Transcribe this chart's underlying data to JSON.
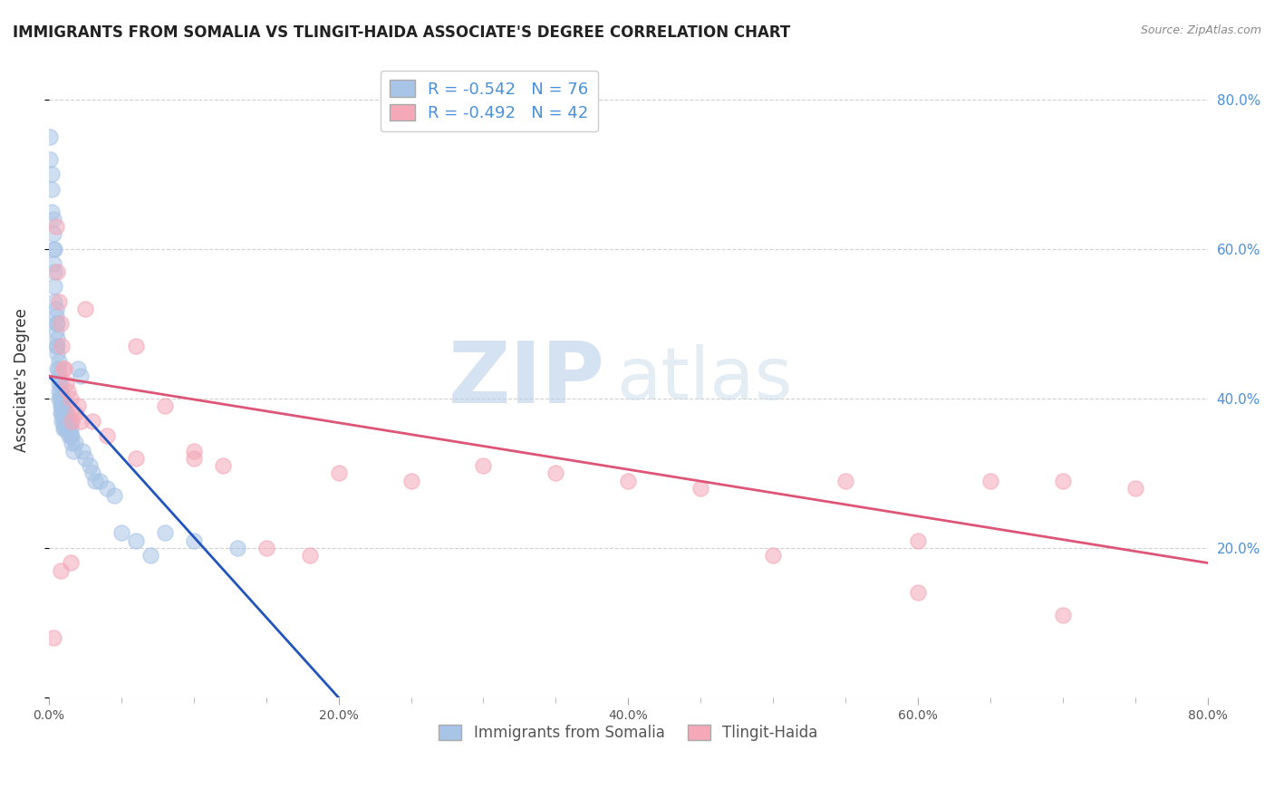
{
  "title": "IMMIGRANTS FROM SOMALIA VS TLINGIT-HAIDA ASSOCIATE'S DEGREE CORRELATION CHART",
  "source": "Source: ZipAtlas.com",
  "ylabel": "Associate's Degree",
  "series1_label": "Immigrants from Somalia",
  "series2_label": "Tlingit-Haida",
  "series1_color": "#a8c4e6",
  "series2_color": "#f4a8b8",
  "series1_line_color": "#2255bb",
  "series2_line_color": "#dd5577",
  "series1_R": -0.542,
  "series1_N": 76,
  "series2_R": -0.492,
  "series2_N": 42,
  "xlim": [
    0.0,
    0.8
  ],
  "ylim": [
    0.0,
    0.85
  ],
  "xtick_major": [
    0.0,
    0.2,
    0.4,
    0.6,
    0.8
  ],
  "xtick_minor": [
    0.05,
    0.1,
    0.15,
    0.25,
    0.3,
    0.35,
    0.45,
    0.5,
    0.55,
    0.65,
    0.7,
    0.75
  ],
  "ytick_vals": [
    0.0,
    0.2,
    0.4,
    0.6,
    0.8
  ],
  "right_ytick_vals": [
    0.2,
    0.4,
    0.6,
    0.8
  ],
  "right_ytick_labels": [
    "20.0%",
    "40.0%",
    "60.0%",
    "80.0%"
  ],
  "background_color": "#ffffff",
  "grid_color": "#cccccc",
  "watermark_zip": "ZIP",
  "watermark_atlas": "atlas",
  "blue_scatter_x": [
    0.001,
    0.001,
    0.002,
    0.002,
    0.002,
    0.003,
    0.003,
    0.003,
    0.003,
    0.004,
    0.004,
    0.004,
    0.004,
    0.005,
    0.005,
    0.005,
    0.005,
    0.005,
    0.006,
    0.006,
    0.006,
    0.006,
    0.006,
    0.007,
    0.007,
    0.007,
    0.007,
    0.007,
    0.007,
    0.008,
    0.008,
    0.008,
    0.008,
    0.008,
    0.009,
    0.009,
    0.009,
    0.009,
    0.01,
    0.01,
    0.01,
    0.01,
    0.01,
    0.011,
    0.011,
    0.011,
    0.012,
    0.012,
    0.012,
    0.013,
    0.013,
    0.014,
    0.014,
    0.015,
    0.015,
    0.015,
    0.016,
    0.016,
    0.017,
    0.018,
    0.02,
    0.022,
    0.023,
    0.025,
    0.028,
    0.03,
    0.032,
    0.035,
    0.04,
    0.045,
    0.05,
    0.06,
    0.07,
    0.08,
    0.1,
    0.13
  ],
  "blue_scatter_y": [
    0.75,
    0.72,
    0.7,
    0.68,
    0.65,
    0.64,
    0.62,
    0.6,
    0.58,
    0.6,
    0.57,
    0.55,
    0.53,
    0.52,
    0.51,
    0.5,
    0.49,
    0.47,
    0.5,
    0.48,
    0.47,
    0.46,
    0.44,
    0.45,
    0.44,
    0.43,
    0.42,
    0.41,
    0.4,
    0.42,
    0.41,
    0.4,
    0.39,
    0.38,
    0.4,
    0.39,
    0.38,
    0.37,
    0.4,
    0.39,
    0.38,
    0.37,
    0.36,
    0.38,
    0.37,
    0.36,
    0.38,
    0.37,
    0.36,
    0.37,
    0.36,
    0.36,
    0.35,
    0.37,
    0.36,
    0.35,
    0.35,
    0.34,
    0.33,
    0.34,
    0.44,
    0.43,
    0.33,
    0.32,
    0.31,
    0.3,
    0.29,
    0.29,
    0.28,
    0.27,
    0.22,
    0.21,
    0.19,
    0.22,
    0.21,
    0.2
  ],
  "pink_scatter_x": [
    0.003,
    0.005,
    0.006,
    0.007,
    0.008,
    0.009,
    0.01,
    0.011,
    0.012,
    0.013,
    0.015,
    0.016,
    0.018,
    0.02,
    0.022,
    0.025,
    0.03,
    0.04,
    0.06,
    0.08,
    0.1,
    0.12,
    0.15,
    0.18,
    0.2,
    0.25,
    0.3,
    0.35,
    0.4,
    0.45,
    0.5,
    0.55,
    0.6,
    0.65,
    0.7,
    0.75,
    0.6,
    0.7,
    0.06,
    0.1,
    0.008,
    0.015
  ],
  "pink_scatter_y": [
    0.08,
    0.63,
    0.57,
    0.53,
    0.5,
    0.47,
    0.44,
    0.44,
    0.42,
    0.41,
    0.4,
    0.37,
    0.38,
    0.39,
    0.37,
    0.52,
    0.37,
    0.35,
    0.47,
    0.39,
    0.33,
    0.31,
    0.2,
    0.19,
    0.3,
    0.29,
    0.31,
    0.3,
    0.29,
    0.28,
    0.19,
    0.29,
    0.21,
    0.29,
    0.29,
    0.28,
    0.14,
    0.11,
    0.32,
    0.32,
    0.17,
    0.18
  ],
  "blue_line_x": [
    0.0,
    0.2
  ],
  "blue_line_y": [
    0.43,
    0.0
  ],
  "pink_line_x": [
    0.0,
    0.8
  ],
  "pink_line_y": [
    0.43,
    0.18
  ]
}
